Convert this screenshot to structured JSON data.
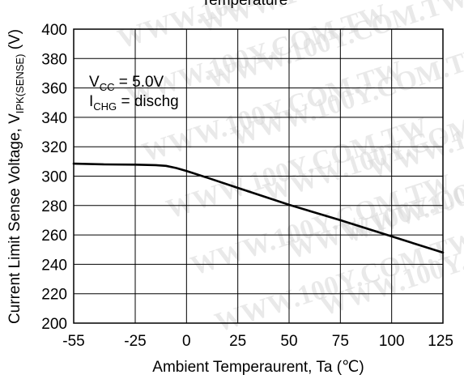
{
  "chart_data": {
    "type": "line",
    "title": "Temperature",
    "xlabel": "Ambient Temperaurent, Ta (℃)",
    "ylabel": {
      "main": "Current Limit Sense Voltage, V",
      "sub": "IPK(SENSE)",
      "unit": " (V)"
    },
    "xlim": [
      -55,
      125
    ],
    "ylim": [
      200,
      400
    ],
    "xticks": [
      -55,
      -25,
      0,
      25,
      50,
      75,
      100,
      125
    ],
    "yticks": [
      200,
      220,
      240,
      260,
      280,
      300,
      320,
      340,
      360,
      380,
      400
    ],
    "grid": true,
    "series": [
      {
        "x": [
          -55,
          -40,
          -25,
          -15,
          -10,
          -5,
          0,
          10,
          25,
          50,
          75,
          100,
          125
        ],
        "y": [
          308.5,
          308,
          307.8,
          307.5,
          307,
          305.5,
          303.5,
          299,
          292,
          280.5,
          270,
          259,
          248
        ]
      }
    ],
    "annotations": [
      {
        "main": "V",
        "sub": "CC",
        "rest": " = 5.0V"
      },
      {
        "main": "I",
        "sub": "CHG",
        "rest": " = dischg"
      }
    ]
  },
  "watermark": "WWW.100Y.COM.TW",
  "colors": {
    "line": "#000000",
    "grid": "#000000",
    "watermark": "#d8d8d8"
  }
}
